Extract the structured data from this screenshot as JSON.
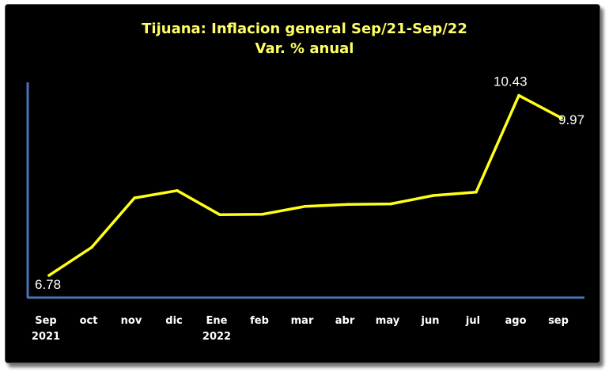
{
  "colors": {
    "background": "#000000",
    "title": "#ffff66",
    "line": "#ffff1a",
    "axis": "#4a74b5",
    "text": "#ffffff"
  },
  "chart_data": {
    "type": "line",
    "title": "Tijuana: Inflacion general Sep/21-Sep/22",
    "subtitle": "Var. % anual",
    "categories": [
      "Sep 2021",
      "oct",
      "nov",
      "dic",
      "Ene 2022",
      "feb",
      "mar",
      "abr",
      "may",
      "jun",
      "jul",
      "ago",
      "sep"
    ],
    "category_labels": [
      [
        "Sep",
        "2021"
      ],
      [
        "oct"
      ],
      [
        "nov"
      ],
      [
        "dic"
      ],
      [
        "Ene",
        "2022"
      ],
      [
        "feb"
      ],
      [
        "mar"
      ],
      [
        "abr"
      ],
      [
        "may"
      ],
      [
        "jun"
      ],
      [
        "jul"
      ],
      [
        "ago"
      ],
      [
        "sep"
      ]
    ],
    "series": [
      {
        "values": [
          6.78,
          7.35,
          8.35,
          8.5,
          8.01,
          8.02,
          8.18,
          8.22,
          8.23,
          8.4,
          8.47,
          10.43,
          9.97
        ]
      }
    ],
    "data_labels": [
      {
        "index": 0,
        "text": "6.78"
      },
      {
        "index": 11,
        "text": "10.43"
      },
      {
        "index": 12,
        "text": "9.97"
      }
    ],
    "ylim": [
      6.65,
      10.6
    ],
    "grid": false,
    "legend": "none"
  }
}
